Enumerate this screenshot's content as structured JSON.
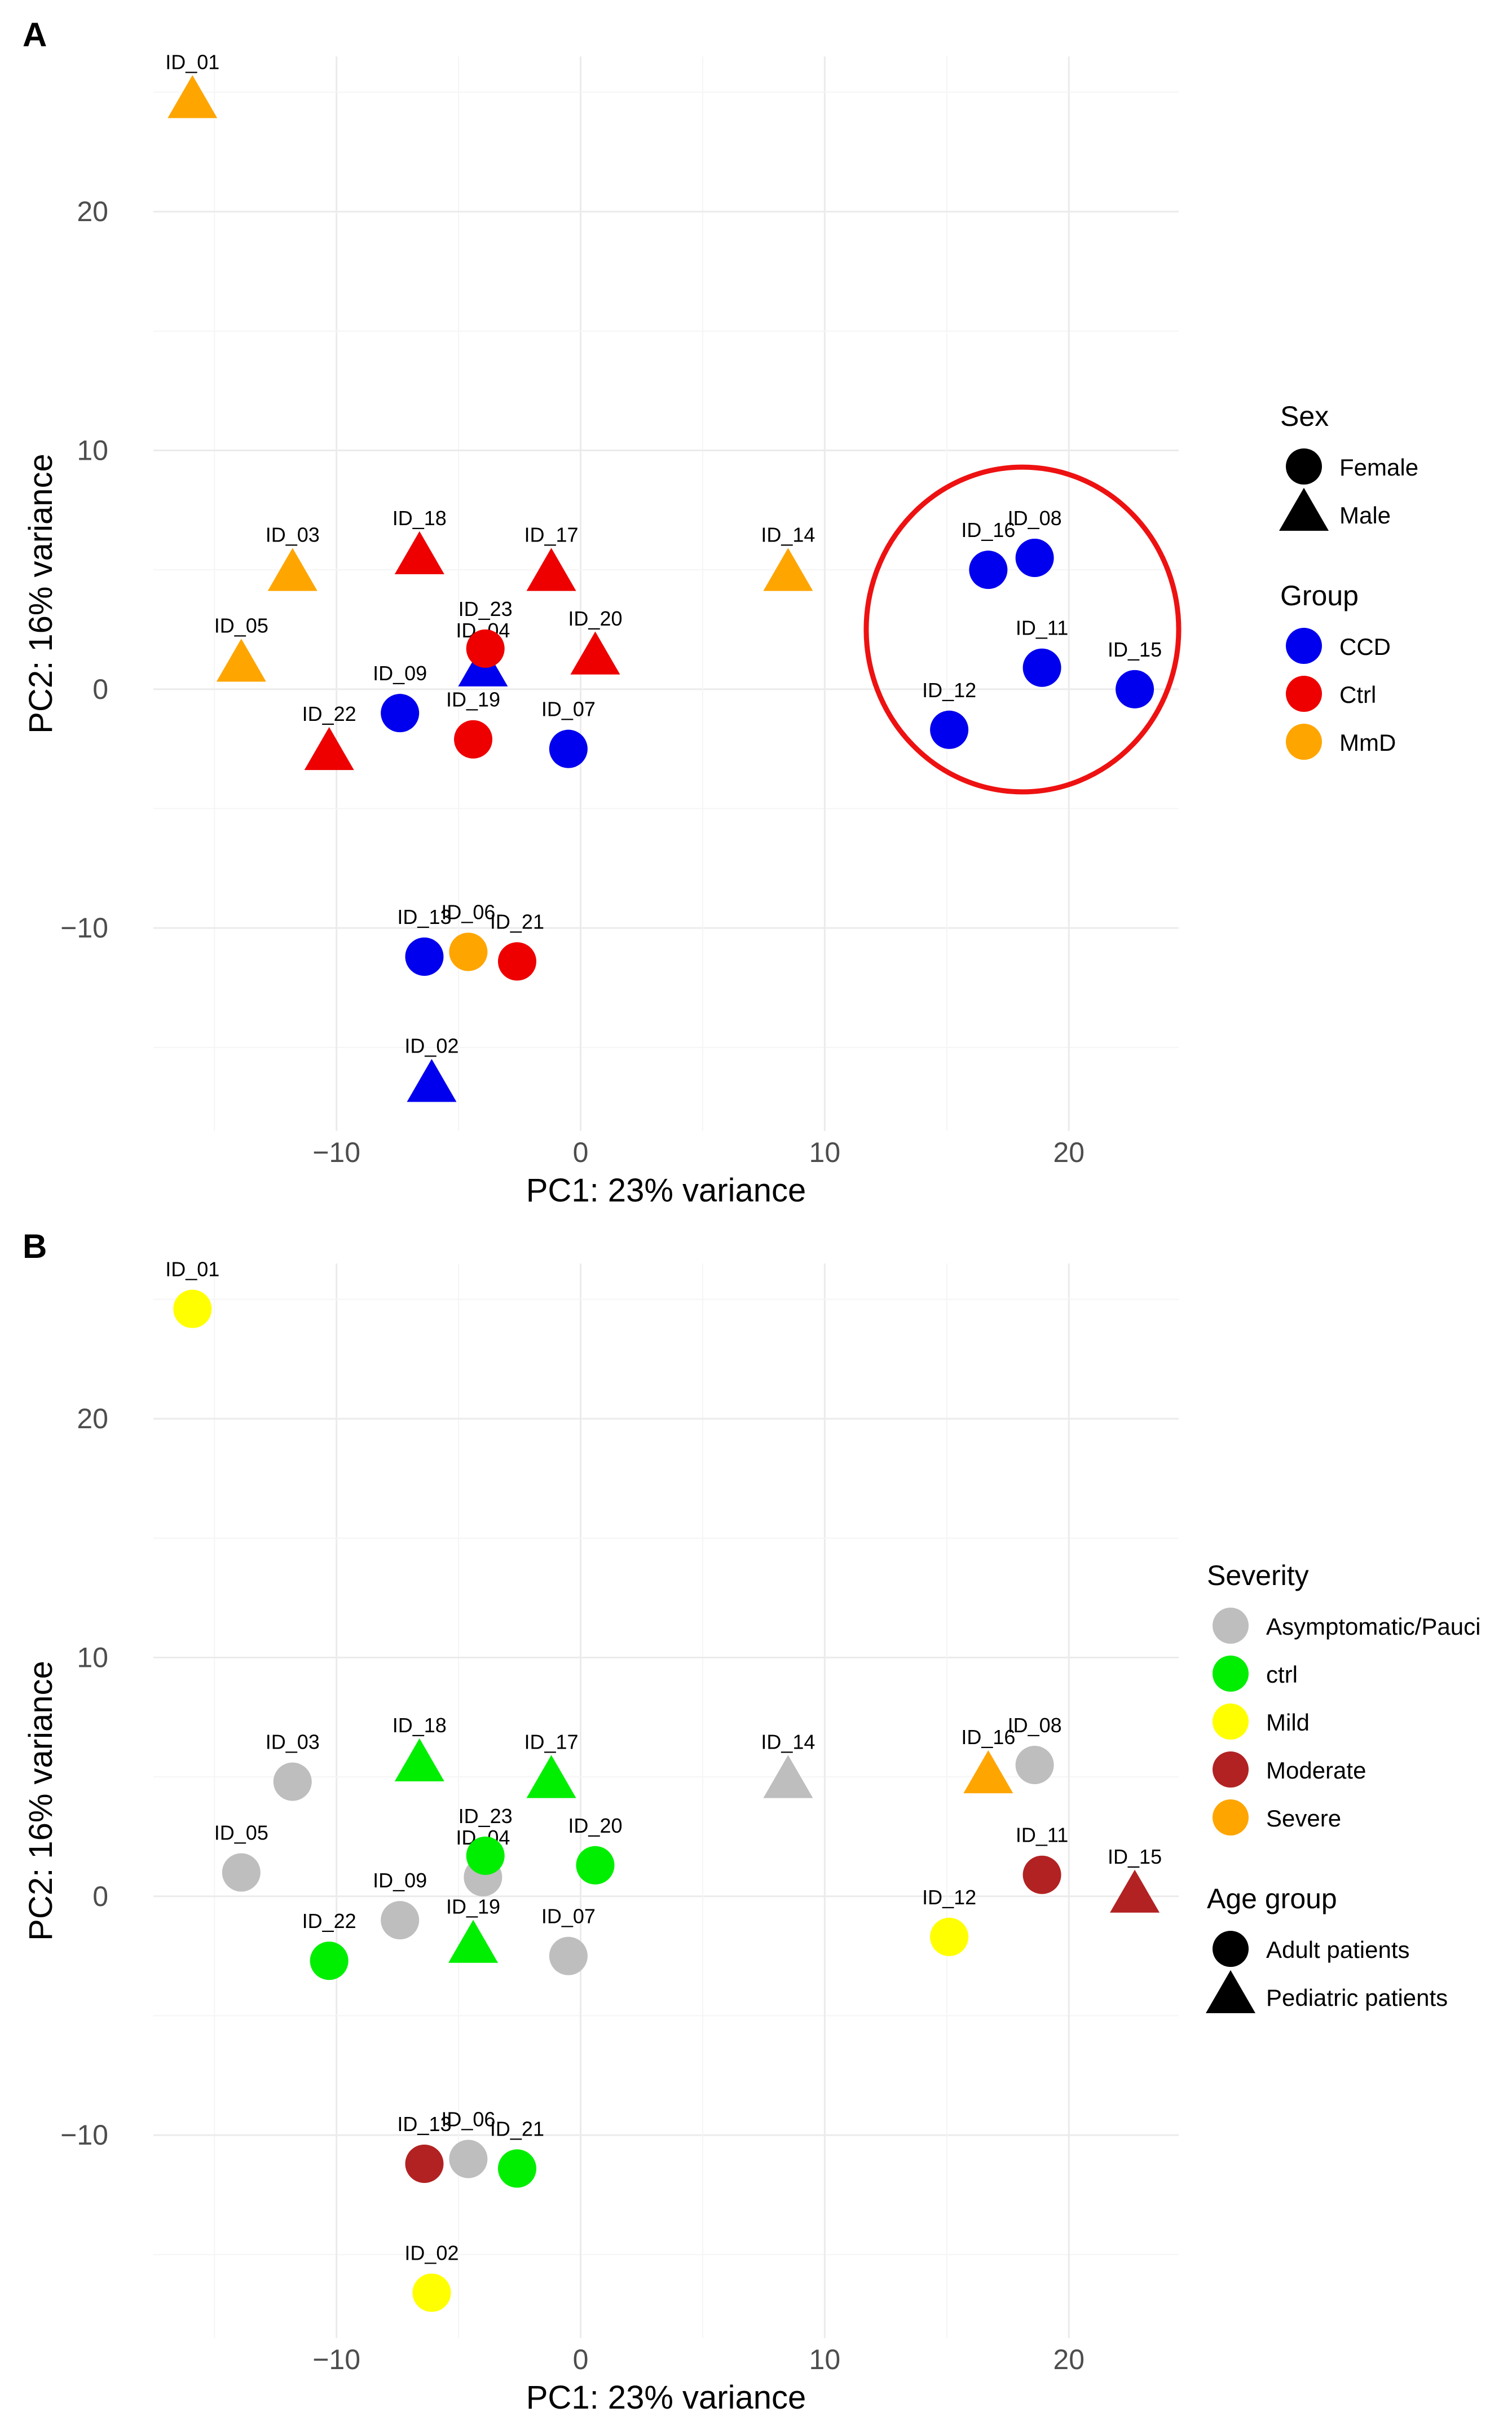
{
  "chart_data": [
    {
      "panel": "A",
      "type": "scatter",
      "title": "",
      "xlabel": "PC1: 23% variance",
      "ylabel": "PC2: 16% variance",
      "xlim": [
        -17.5,
        24.5
      ],
      "ylim": [
        -18.5,
        26.5
      ],
      "xticks": [
        -10,
        0,
        10,
        20
      ],
      "yticks": [
        -10,
        0,
        10,
        20
      ],
      "points": [
        {
          "id": "ID_01",
          "x": -15.9,
          "y": 24.6,
          "group": "MmD",
          "sex": "Male"
        },
        {
          "id": "ID_02",
          "x": -6.1,
          "y": -16.6,
          "group": "CCD",
          "sex": "Male"
        },
        {
          "id": "ID_03",
          "x": -11.8,
          "y": 4.8,
          "group": "MmD",
          "sex": "Male"
        },
        {
          "id": "ID_04",
          "x": -4.0,
          "y": 0.8,
          "group": "CCD",
          "sex": "Male"
        },
        {
          "id": "ID_05",
          "x": -13.9,
          "y": 1.0,
          "group": "MmD",
          "sex": "Male"
        },
        {
          "id": "ID_06",
          "x": -4.6,
          "y": -11.0,
          "group": "MmD",
          "sex": "Female"
        },
        {
          "id": "ID_07",
          "x": -0.5,
          "y": -2.5,
          "group": "CCD",
          "sex": "Female"
        },
        {
          "id": "ID_08",
          "x": 18.6,
          "y": 5.5,
          "group": "CCD",
          "sex": "Female"
        },
        {
          "id": "ID_09",
          "x": -7.4,
          "y": -1.0,
          "group": "CCD",
          "sex": "Female"
        },
        {
          "id": "ID_11",
          "x": 18.9,
          "y": 0.9,
          "group": "CCD",
          "sex": "Female"
        },
        {
          "id": "ID_12",
          "x": 15.1,
          "y": -1.7,
          "group": "CCD",
          "sex": "Female"
        },
        {
          "id": "ID_13",
          "x": -6.4,
          "y": -11.2,
          "group": "CCD",
          "sex": "Female"
        },
        {
          "id": "ID_14",
          "x": 8.5,
          "y": 4.8,
          "group": "MmD",
          "sex": "Male"
        },
        {
          "id": "ID_15",
          "x": 22.7,
          "y": 0.0,
          "group": "CCD",
          "sex": "Female"
        },
        {
          "id": "ID_16",
          "x": 16.7,
          "y": 5.0,
          "group": "CCD",
          "sex": "Female"
        },
        {
          "id": "ID_17",
          "x": -1.2,
          "y": 4.8,
          "group": "Ctrl",
          "sex": "Male"
        },
        {
          "id": "ID_18",
          "x": -6.6,
          "y": 5.5,
          "group": "Ctrl",
          "sex": "Male"
        },
        {
          "id": "ID_19",
          "x": -4.4,
          "y": -2.1,
          "group": "Ctrl",
          "sex": "Female"
        },
        {
          "id": "ID_20",
          "x": 0.6,
          "y": 1.3,
          "group": "Ctrl",
          "sex": "Male"
        },
        {
          "id": "ID_21",
          "x": -2.6,
          "y": -11.4,
          "group": "Ctrl",
          "sex": "Female"
        },
        {
          "id": "ID_22",
          "x": -10.3,
          "y": -2.7,
          "group": "Ctrl",
          "sex": "Male"
        },
        {
          "id": "ID_23",
          "x": -3.9,
          "y": 1.7,
          "group": "Ctrl",
          "sex": "Female"
        }
      ],
      "highlight": {
        "type": "ellipse",
        "center_x": 18.1,
        "center_y": 2.5,
        "radius_x": 6.4,
        "radius_y": 6.8,
        "color": "#ee1111"
      },
      "legends": [
        {
          "title": "Sex",
          "kind": "shape",
          "items": [
            {
              "label": "Female",
              "shape": "circle"
            },
            {
              "label": "Male",
              "shape": "triangle"
            }
          ]
        },
        {
          "title": "Group",
          "kind": "color",
          "items": [
            {
              "label": "CCD",
              "color": "#0000ee"
            },
            {
              "label": "Ctrl",
              "color": "#ee0000"
            },
            {
              "label": "MmD",
              "color": "#ffa500"
            }
          ]
        }
      ]
    },
    {
      "panel": "B",
      "type": "scatter",
      "title": "",
      "xlabel": "PC1: 23% variance",
      "ylabel": "PC2: 16% variance",
      "xlim": [
        -17.5,
        24.5
      ],
      "ylim": [
        -18.5,
        26.5
      ],
      "xticks": [
        -10,
        0,
        10,
        20
      ],
      "yticks": [
        -10,
        0,
        10,
        20
      ],
      "points": [
        {
          "id": "ID_01",
          "x": -15.9,
          "y": 24.6,
          "severity": "Mild",
          "age_group": "Adult patients"
        },
        {
          "id": "ID_02",
          "x": -6.1,
          "y": -16.6,
          "severity": "Mild",
          "age_group": "Adult patients"
        },
        {
          "id": "ID_03",
          "x": -11.8,
          "y": 4.8,
          "severity": "Asymptomatic/Pauci",
          "age_group": "Adult patients"
        },
        {
          "id": "ID_04",
          "x": -4.0,
          "y": 0.8,
          "severity": "Asymptomatic/Pauci",
          "age_group": "Adult patients"
        },
        {
          "id": "ID_05",
          "x": -13.9,
          "y": 1.0,
          "severity": "Asymptomatic/Pauci",
          "age_group": "Adult patients"
        },
        {
          "id": "ID_06",
          "x": -4.6,
          "y": -11.0,
          "severity": "Asymptomatic/Pauci",
          "age_group": "Adult patients"
        },
        {
          "id": "ID_07",
          "x": -0.5,
          "y": -2.5,
          "severity": "Asymptomatic/Pauci",
          "age_group": "Adult patients"
        },
        {
          "id": "ID_08",
          "x": 18.6,
          "y": 5.5,
          "severity": "Asymptomatic/Pauci",
          "age_group": "Adult patients"
        },
        {
          "id": "ID_09",
          "x": -7.4,
          "y": -1.0,
          "severity": "Asymptomatic/Pauci",
          "age_group": "Adult patients"
        },
        {
          "id": "ID_11",
          "x": 18.9,
          "y": 0.9,
          "severity": "Moderate",
          "age_group": "Adult patients"
        },
        {
          "id": "ID_12",
          "x": 15.1,
          "y": -1.7,
          "severity": "Mild",
          "age_group": "Adult patients"
        },
        {
          "id": "ID_13",
          "x": -6.4,
          "y": -11.2,
          "severity": "Moderate",
          "age_group": "Adult patients"
        },
        {
          "id": "ID_14",
          "x": 8.5,
          "y": 4.8,
          "severity": "Asymptomatic/Pauci",
          "age_group": "Pediatric patients"
        },
        {
          "id": "ID_15",
          "x": 22.7,
          "y": 0.0,
          "severity": "Moderate",
          "age_group": "Pediatric patients"
        },
        {
          "id": "ID_16",
          "x": 16.7,
          "y": 5.0,
          "severity": "Severe",
          "age_group": "Pediatric patients"
        },
        {
          "id": "ID_17",
          "x": -1.2,
          "y": 4.8,
          "severity": "ctrl",
          "age_group": "Pediatric patients"
        },
        {
          "id": "ID_18",
          "x": -6.6,
          "y": 5.5,
          "severity": "ctrl",
          "age_group": "Pediatric patients"
        },
        {
          "id": "ID_19",
          "x": -4.4,
          "y": -2.1,
          "severity": "ctrl",
          "age_group": "Pediatric patients"
        },
        {
          "id": "ID_20",
          "x": 0.6,
          "y": 1.3,
          "severity": "ctrl",
          "age_group": "Adult patients"
        },
        {
          "id": "ID_21",
          "x": -2.6,
          "y": -11.4,
          "severity": "ctrl",
          "age_group": "Adult patients"
        },
        {
          "id": "ID_22",
          "x": -10.3,
          "y": -2.7,
          "severity": "ctrl",
          "age_group": "Adult patients"
        },
        {
          "id": "ID_23",
          "x": -3.9,
          "y": 1.7,
          "severity": "ctrl",
          "age_group": "Adult patients"
        }
      ],
      "legends": [
        {
          "title": "Severity",
          "kind": "color",
          "items": [
            {
              "label": "Asymptomatic/Pauci",
              "color": "#bebebe"
            },
            {
              "label": "ctrl",
              "color": "#00ee00"
            },
            {
              "label": "Mild",
              "color": "#ffff00"
            },
            {
              "label": "Moderate",
              "color": "#b22222"
            },
            {
              "label": "Severe",
              "color": "#ffa500"
            }
          ]
        },
        {
          "title": "Age group",
          "kind": "shape",
          "items": [
            {
              "label": "Adult patients",
              "shape": "circle"
            },
            {
              "label": "Pediatric patients",
              "shape": "triangle"
            }
          ]
        }
      ]
    }
  ],
  "colors": {
    "group": {
      "CCD": "#0000ee",
      "Ctrl": "#ee0000",
      "MmD": "#ffa500"
    },
    "severity": {
      "Asymptomatic/Pauci": "#bebebe",
      "ctrl": "#00ee00",
      "Mild": "#ffff00",
      "Moderate": "#b22222",
      "Severe": "#ffa500"
    }
  }
}
